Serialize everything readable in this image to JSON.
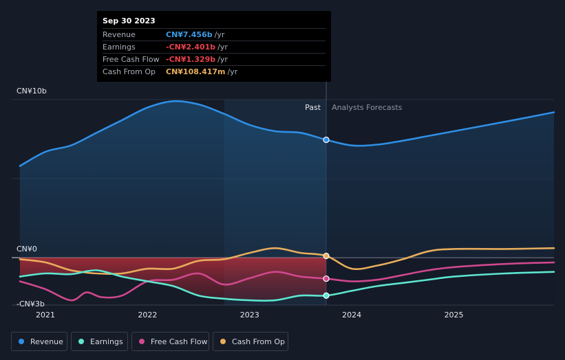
{
  "tooltip": {
    "date": "Sep 30 2023",
    "rows": [
      {
        "label": "Revenue",
        "value": "CN¥7.456b",
        "unit": "/yr",
        "color": "#3b9be6"
      },
      {
        "label": "Earnings",
        "value": "-CN¥2.401b",
        "unit": "/yr",
        "color": "#e8414b"
      },
      {
        "label": "Free Cash Flow",
        "value": "-CN¥1.329b",
        "unit": "/yr",
        "color": "#e8414b"
      },
      {
        "label": "Cash From Op",
        "value": "CN¥108.417m",
        "unit": "/yr",
        "color": "#e8ad5c"
      }
    ]
  },
  "legend": [
    {
      "label": "Revenue",
      "color": "#2f8fe6"
    },
    {
      "label": "Earnings",
      "color": "#5ee6cf"
    },
    {
      "label": "Free Cash Flow",
      "color": "#d0488e"
    },
    {
      "label": "Cash From Op",
      "color": "#e8ad5c"
    }
  ],
  "chart_data": {
    "type": "line",
    "title": "",
    "xlabel": "",
    "ylabel": "",
    "x_range": [
      2020.67,
      2025.98
    ],
    "ylim": [
      -3,
      10
    ],
    "y_tick_labels": [
      {
        "value": 10,
        "label": "CN¥10b"
      },
      {
        "value": 0,
        "label": "CN¥0"
      },
      {
        "value": -3,
        "label": "-CN¥3b"
      }
    ],
    "x_ticks": [
      {
        "value": 2021.0,
        "label": "2021"
      },
      {
        "value": 2022.0,
        "label": "2022"
      },
      {
        "value": 2023.0,
        "label": "2023"
      },
      {
        "value": 2024.0,
        "label": "2024"
      },
      {
        "value": 2025.0,
        "label": "2025"
      }
    ],
    "past_label": "Past",
    "forecast_label": "Analysts Forecasts",
    "divider_x": 2023.75,
    "highlight_start": 2022.75,
    "series": [
      {
        "name": "Revenue",
        "color": "#2f8fe6",
        "points": [
          [
            2020.75,
            5.8
          ],
          [
            2021.0,
            6.7
          ],
          [
            2021.25,
            7.1
          ],
          [
            2021.5,
            7.9
          ],
          [
            2021.75,
            8.7
          ],
          [
            2022.0,
            9.5
          ],
          [
            2022.25,
            9.9
          ],
          [
            2022.5,
            9.7
          ],
          [
            2022.75,
            9.1
          ],
          [
            2023.0,
            8.4
          ],
          [
            2023.25,
            8.0
          ],
          [
            2023.5,
            7.9
          ],
          [
            2023.75,
            7.456
          ],
          [
            2024.0,
            7.1
          ],
          [
            2024.25,
            7.15
          ],
          [
            2024.5,
            7.4
          ],
          [
            2024.75,
            7.7
          ],
          [
            2025.0,
            8.0
          ],
          [
            2025.5,
            8.6
          ],
          [
            2025.98,
            9.2
          ]
        ]
      },
      {
        "name": "Earnings",
        "color": "#5ee6cf",
        "points": [
          [
            2020.75,
            -1.2
          ],
          [
            2021.0,
            -1.0
          ],
          [
            2021.25,
            -1.05
          ],
          [
            2021.5,
            -0.8
          ],
          [
            2021.75,
            -1.2
          ],
          [
            2022.0,
            -1.5
          ],
          [
            2022.25,
            -1.8
          ],
          [
            2022.5,
            -2.4
          ],
          [
            2022.75,
            -2.6
          ],
          [
            2023.0,
            -2.7
          ],
          [
            2023.25,
            -2.7
          ],
          [
            2023.5,
            -2.4
          ],
          [
            2023.75,
            -2.401
          ],
          [
            2024.0,
            -2.1
          ],
          [
            2024.25,
            -1.8
          ],
          [
            2024.5,
            -1.6
          ],
          [
            2024.75,
            -1.4
          ],
          [
            2025.0,
            -1.2
          ],
          [
            2025.5,
            -1.0
          ],
          [
            2025.98,
            -0.9
          ]
        ]
      },
      {
        "name": "Free Cash Flow",
        "color": "#d0488e",
        "points": [
          [
            2020.75,
            -1.5
          ],
          [
            2021.0,
            -2.0
          ],
          [
            2021.25,
            -2.7
          ],
          [
            2021.4,
            -2.2
          ],
          [
            2021.55,
            -2.5
          ],
          [
            2021.75,
            -2.4
          ],
          [
            2022.0,
            -1.5
          ],
          [
            2022.25,
            -1.4
          ],
          [
            2022.5,
            -1.0
          ],
          [
            2022.75,
            -1.7
          ],
          [
            2023.0,
            -1.3
          ],
          [
            2023.25,
            -0.9
          ],
          [
            2023.5,
            -1.2
          ],
          [
            2023.75,
            -1.329
          ],
          [
            2024.0,
            -1.5
          ],
          [
            2024.25,
            -1.4
          ],
          [
            2024.5,
            -1.1
          ],
          [
            2024.75,
            -0.8
          ],
          [
            2025.0,
            -0.6
          ],
          [
            2025.5,
            -0.4
          ],
          [
            2025.98,
            -0.3
          ]
        ]
      },
      {
        "name": "Cash From Op",
        "color": "#e8ad5c",
        "points": [
          [
            2020.75,
            -0.1
          ],
          [
            2021.0,
            -0.3
          ],
          [
            2021.25,
            -0.8
          ],
          [
            2021.5,
            -1.0
          ],
          [
            2021.75,
            -1.0
          ],
          [
            2022.0,
            -0.7
          ],
          [
            2022.25,
            -0.7
          ],
          [
            2022.5,
            -0.2
          ],
          [
            2022.75,
            -0.1
          ],
          [
            2023.0,
            0.3
          ],
          [
            2023.25,
            0.6
          ],
          [
            2023.5,
            0.3
          ],
          [
            2023.75,
            0.108
          ],
          [
            2024.0,
            -0.7
          ],
          [
            2024.25,
            -0.5
          ],
          [
            2024.5,
            -0.1
          ],
          [
            2024.75,
            0.4
          ],
          [
            2025.0,
            0.55
          ],
          [
            2025.5,
            0.55
          ],
          [
            2025.98,
            0.6
          ]
        ]
      }
    ]
  }
}
